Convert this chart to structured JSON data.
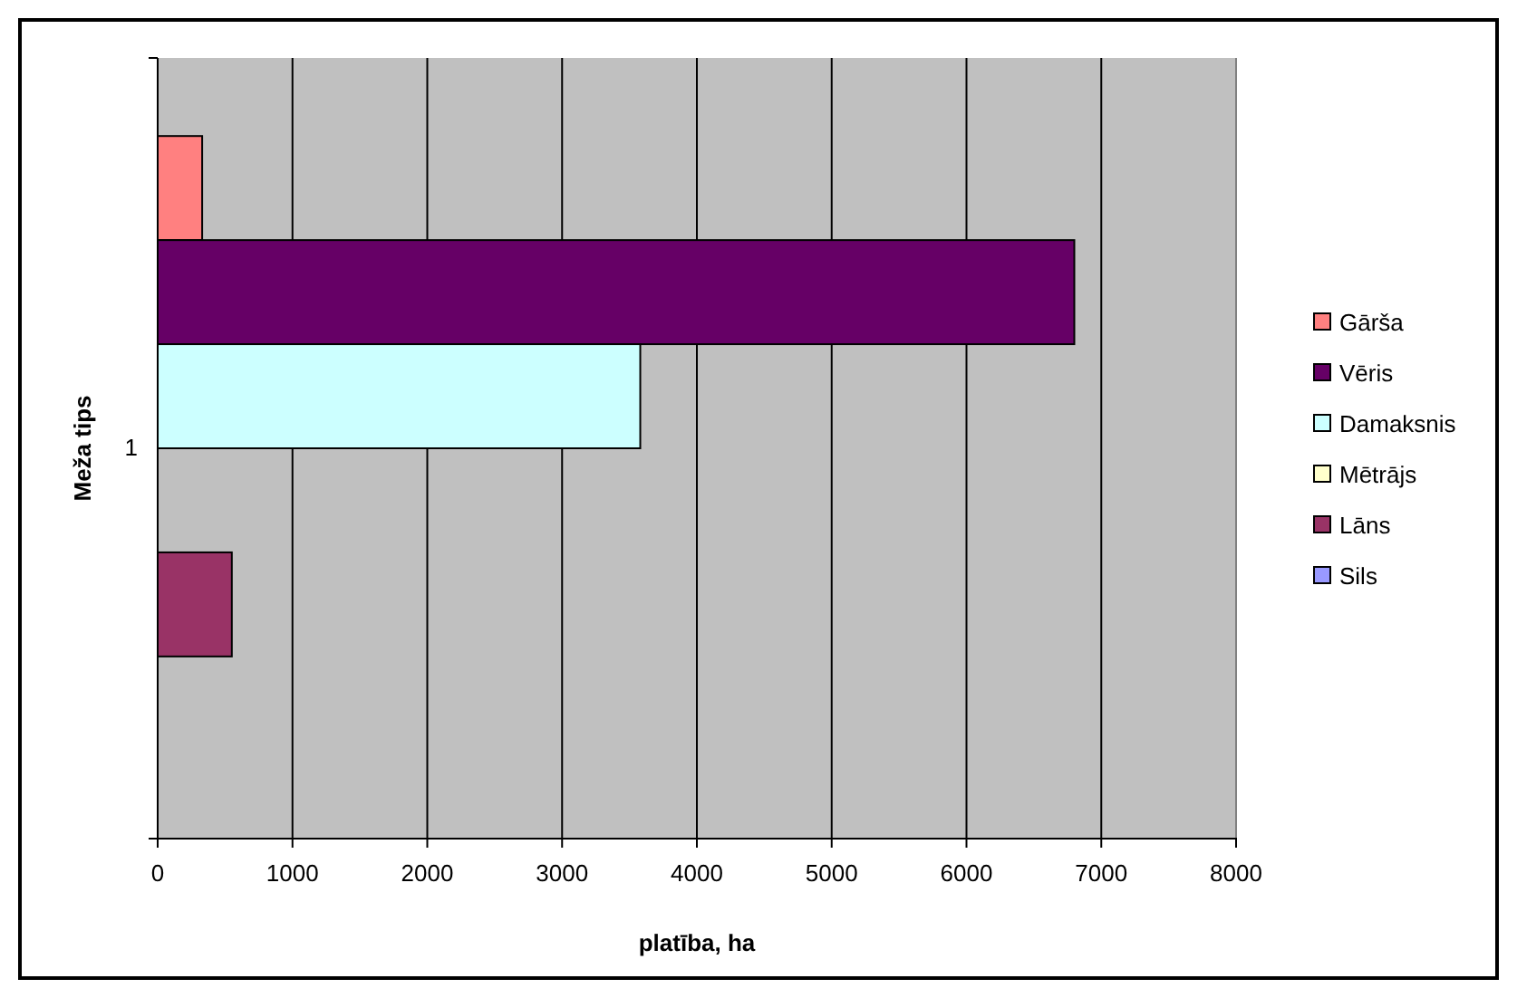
{
  "chart_data": {
    "type": "bar",
    "orientation": "horizontal",
    "xlabel": "platība, ha",
    "ylabel": "Meža tips",
    "categories": [
      "1"
    ],
    "series": [
      {
        "name": "Gārša",
        "color": "#ff8080",
        "values": [
          330
        ]
      },
      {
        "name": "Vēris",
        "color": "#660066",
        "values": [
          6800
        ]
      },
      {
        "name": "Damaksnis",
        "color": "#ccffff",
        "values": [
          3580
        ]
      },
      {
        "name": "Mētrājs",
        "color": "#ffffcc",
        "values": [
          0
        ]
      },
      {
        "name": "Lāns",
        "color": "#993366",
        "values": [
          550
        ]
      },
      {
        "name": "Sils",
        "color": "#9999ff",
        "values": [
          0
        ]
      }
    ],
    "xlim": [
      0,
      8000
    ],
    "xticks": [
      0,
      1000,
      2000,
      3000,
      4000,
      5000,
      6000,
      7000,
      8000
    ],
    "grid": "x",
    "legend": "right"
  }
}
